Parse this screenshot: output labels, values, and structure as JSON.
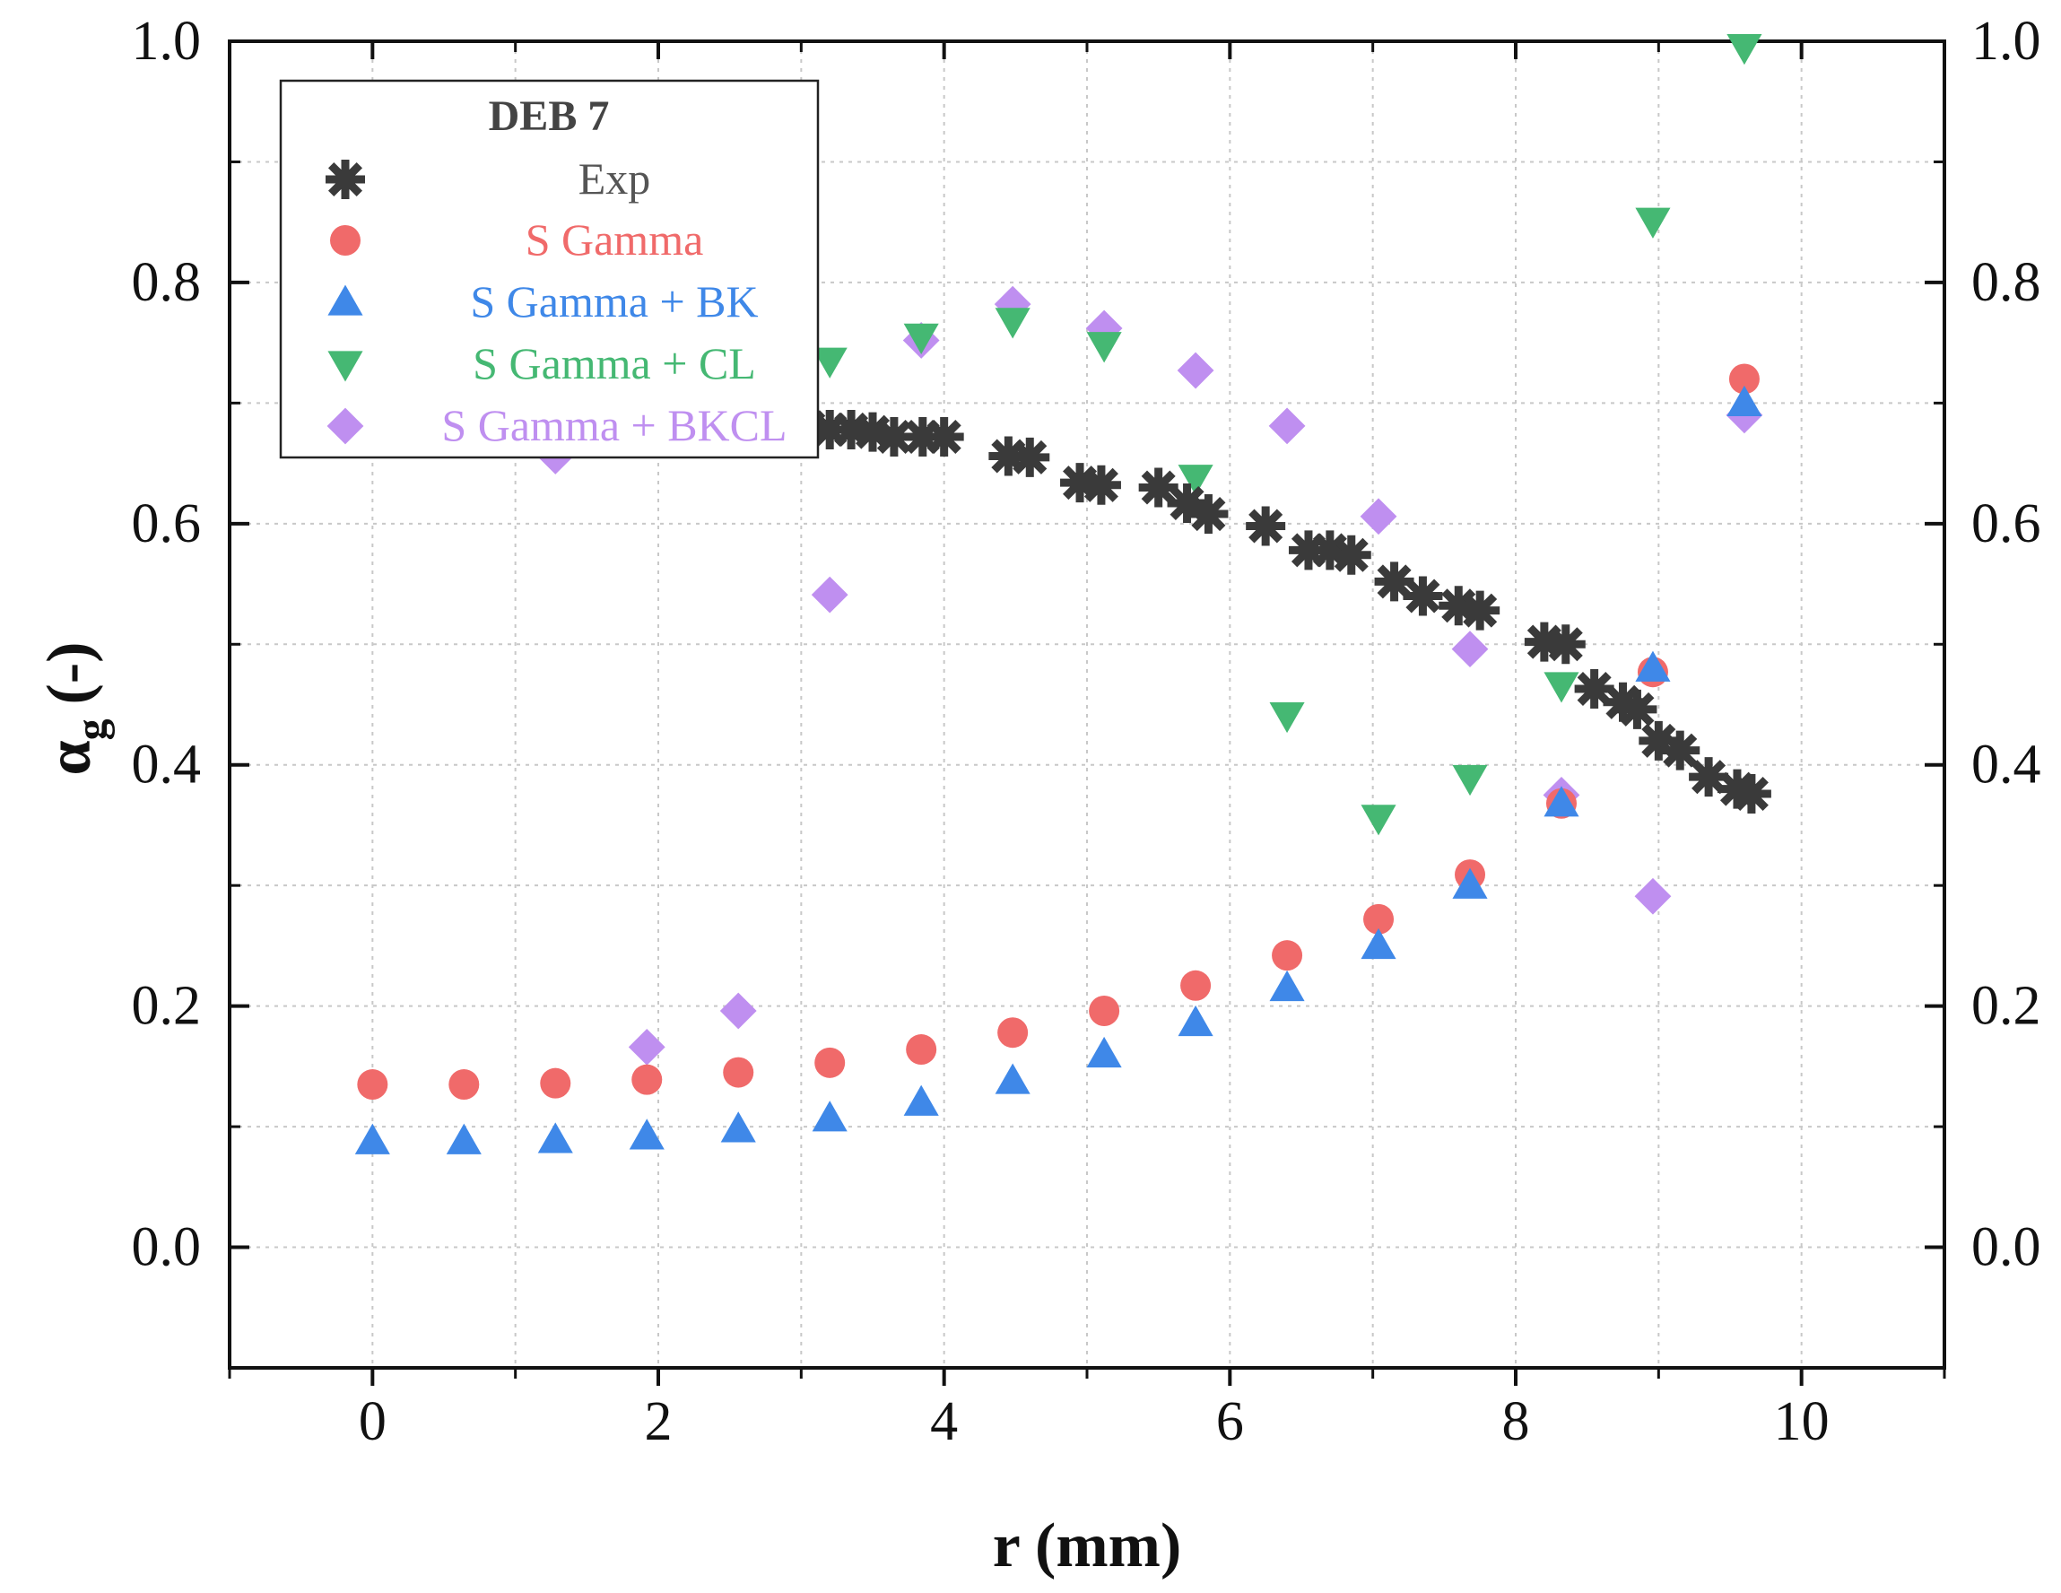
{
  "chart_data": {
    "type": "scatter",
    "title": "",
    "xlabel": "r (mm)",
    "ylabel_main": "α",
    "ylabel_sub": "g",
    "ylabel_tail": "(-)",
    "xlim": [
      -1,
      11
    ],
    "ylim": [
      -0.1,
      1.0
    ],
    "x_ticks": [
      "0",
      "2",
      "4",
      "6",
      "8",
      "10"
    ],
    "y_ticks": [
      "0.0",
      "0.2",
      "0.4",
      "0.6",
      "0.8",
      "1.0"
    ],
    "right_y_ticks": [
      "0.0",
      "0.2",
      "0.4",
      "0.6",
      "0.8",
      "1.0"
    ],
    "grid": true,
    "legend": {
      "placement": "top-left",
      "title": "DEB 7"
    },
    "series": [
      {
        "name": "Exp",
        "marker": "asterisk",
        "color": "#3a3a3a",
        "points": [
          [
            3.05,
            0.68
          ],
          [
            3.2,
            0.678
          ],
          [
            3.35,
            0.678
          ],
          [
            3.5,
            0.676
          ],
          [
            3.65,
            0.672
          ],
          [
            3.85,
            0.672
          ],
          [
            4.0,
            0.672
          ],
          [
            4.45,
            0.656
          ],
          [
            4.6,
            0.655
          ],
          [
            4.95,
            0.634
          ],
          [
            5.1,
            0.632
          ],
          [
            5.5,
            0.63
          ],
          [
            5.7,
            0.617
          ],
          [
            5.85,
            0.608
          ],
          [
            6.25,
            0.598
          ],
          [
            6.55,
            0.578
          ],
          [
            6.7,
            0.578
          ],
          [
            6.85,
            0.574
          ],
          [
            7.15,
            0.552
          ],
          [
            7.35,
            0.54
          ],
          [
            7.6,
            0.532
          ],
          [
            7.75,
            0.528
          ],
          [
            8.2,
            0.502
          ],
          [
            8.35,
            0.5
          ],
          [
            8.55,
            0.463
          ],
          [
            8.75,
            0.452
          ],
          [
            8.85,
            0.446
          ],
          [
            9.0,
            0.42
          ],
          [
            9.15,
            0.412
          ],
          [
            9.35,
            0.39
          ],
          [
            9.55,
            0.38
          ],
          [
            9.65,
            0.376
          ]
        ]
      },
      {
        "name": "S Gamma",
        "marker": "circle",
        "color": "#f06a6a",
        "points": [
          [
            0.0,
            0.135
          ],
          [
            0.64,
            0.135
          ],
          [
            1.28,
            0.136
          ],
          [
            1.92,
            0.139
          ],
          [
            2.56,
            0.145
          ],
          [
            3.2,
            0.153
          ],
          [
            3.84,
            0.164
          ],
          [
            4.48,
            0.178
          ],
          [
            5.12,
            0.196
          ],
          [
            5.76,
            0.217
          ],
          [
            6.4,
            0.242
          ],
          [
            7.04,
            0.272
          ],
          [
            7.68,
            0.309
          ],
          [
            8.32,
            0.368
          ],
          [
            8.96,
            0.477
          ],
          [
            9.6,
            0.72
          ]
        ]
      },
      {
        "name": "S Gamma + BK",
        "marker": "triangle-up",
        "color": "#3f88e8",
        "points": [
          [
            0.0,
            0.088
          ],
          [
            0.64,
            0.088
          ],
          [
            1.28,
            0.089
          ],
          [
            1.92,
            0.092
          ],
          [
            2.56,
            0.098
          ],
          [
            3.2,
            0.107
          ],
          [
            3.84,
            0.12
          ],
          [
            4.48,
            0.138
          ],
          [
            5.12,
            0.16
          ],
          [
            5.76,
            0.186
          ],
          [
            6.4,
            0.215
          ],
          [
            7.04,
            0.25
          ],
          [
            7.68,
            0.3
          ],
          [
            8.32,
            0.368
          ],
          [
            8.96,
            0.48
          ],
          [
            9.6,
            0.7
          ]
        ]
      },
      {
        "name": "S Gamma + CL",
        "marker": "triangle-down",
        "color": "#45b873",
        "points": [
          [
            3.2,
            0.735
          ],
          [
            3.84,
            0.755
          ],
          [
            4.48,
            0.768
          ],
          [
            5.12,
            0.748
          ],
          [
            5.76,
            0.638
          ],
          [
            6.4,
            0.441
          ],
          [
            7.04,
            0.356
          ],
          [
            7.68,
            0.389
          ],
          [
            8.32,
            0.466
          ],
          [
            8.96,
            0.851
          ],
          [
            9.6,
            0.995
          ]
        ]
      },
      {
        "name": "S Gamma + BKCL",
        "marker": "diamond",
        "color": "#bf8ff0",
        "points": [
          [
            1.28,
            0.656
          ],
          [
            1.92,
            0.166
          ],
          [
            2.56,
            0.196
          ],
          [
            3.2,
            0.541
          ],
          [
            3.84,
            0.752
          ],
          [
            4.48,
            0.782
          ],
          [
            5.12,
            0.762
          ],
          [
            5.76,
            0.727
          ],
          [
            6.4,
            0.681
          ],
          [
            7.04,
            0.606
          ],
          [
            7.68,
            0.496
          ],
          [
            8.32,
            0.375
          ],
          [
            8.96,
            0.291
          ],
          [
            9.6,
            0.69
          ]
        ]
      }
    ]
  }
}
